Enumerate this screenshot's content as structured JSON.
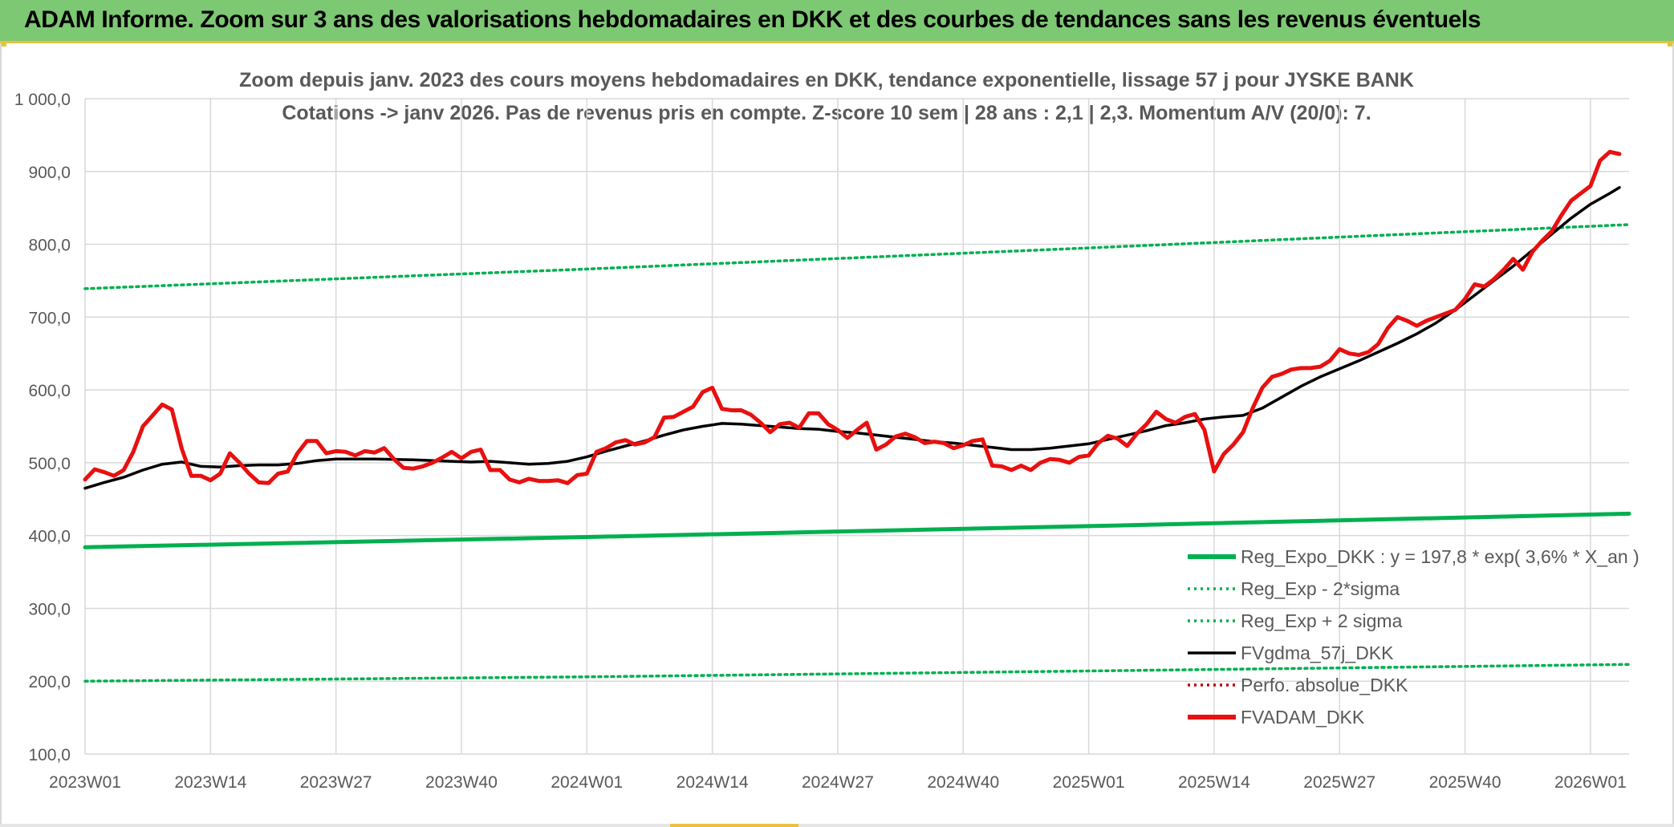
{
  "header": {
    "title": "ADAM Informe. Zoom sur 3 ans des valorisations hebdomadaires en DKK et des courbes de tendances sans les revenus éventuels"
  },
  "chart_data": {
    "type": "line",
    "title_line1": "Zoom depuis janv. 2023 des cours moyens hebdomadaires en DKK, tendance exponentielle, lissage 57 j pour JYSKE BANK",
    "title_line2": "Cotations -> janv 2026. Pas de revenus pris en compte. Z-score 10 sem | 28 ans : 2,1  | 2,3. Momentum A/V (20/0): 7.",
    "xlabel": "",
    "ylabel": "",
    "ylim": [
      100,
      1000
    ],
    "yticks": [
      "1 000,0",
      "900,0",
      "800,0",
      "700,0",
      "600,0",
      "500,0",
      "400,0",
      "300,0",
      "200,0",
      "100,0"
    ],
    "x_tick_labels": [
      "2023W01",
      "2023W14",
      "2023W27",
      "2023W40",
      "2024W01",
      "2024W14",
      "2024W27",
      "2024W40",
      "2025W01",
      "2025W14",
      "2025W27",
      "2025W40",
      "2026W01"
    ],
    "x_tick_weeks": [
      0,
      13,
      26,
      39,
      52,
      65,
      78,
      91,
      104,
      117,
      130,
      143,
      156
    ],
    "grid": true,
    "legend_position": "bottom-right",
    "series": [
      {
        "name": "Reg_Expo_DKK : y = 197,8 * exp( 3,6% *  X_an )",
        "color": "#00b050",
        "style": "solid-thick",
        "points": [
          [
            0,
            384
          ],
          [
            52,
            398
          ],
          [
            104,
            413
          ],
          [
            160,
            430
          ]
        ]
      },
      {
        "name": "Reg_Exp - 2*sigma",
        "color": "#00b050",
        "style": "dotted",
        "points": [
          [
            0,
            200
          ],
          [
            52,
            206
          ],
          [
            104,
            214
          ],
          [
            160,
            223
          ]
        ]
      },
      {
        "name": "Reg_Exp + 2 sigma",
        "color": "#00b050",
        "style": "dotted",
        "points": [
          [
            0,
            739
          ],
          [
            52,
            766
          ],
          [
            104,
            795
          ],
          [
            160,
            827
          ]
        ]
      },
      {
        "name": "FVgdma_57j_DKK",
        "color": "#000000",
        "style": "solid",
        "points": [
          [
            0,
            465
          ],
          [
            2,
            473
          ],
          [
            4,
            480
          ],
          [
            6,
            490
          ],
          [
            8,
            498
          ],
          [
            10,
            501
          ],
          [
            12,
            495
          ],
          [
            14,
            494
          ],
          [
            16,
            496
          ],
          [
            18,
            497
          ],
          [
            20,
            497
          ],
          [
            22,
            499
          ],
          [
            24,
            503
          ],
          [
            26,
            505
          ],
          [
            30,
            505
          ],
          [
            34,
            504
          ],
          [
            38,
            502
          ],
          [
            40,
            501
          ],
          [
            42,
            502
          ],
          [
            44,
            500
          ],
          [
            46,
            498
          ],
          [
            48,
            499
          ],
          [
            50,
            502
          ],
          [
            52,
            508
          ],
          [
            54,
            516
          ],
          [
            56,
            523
          ],
          [
            58,
            530
          ],
          [
            60,
            538
          ],
          [
            62,
            545
          ],
          [
            64,
            550
          ],
          [
            66,
            554
          ],
          [
            68,
            553
          ],
          [
            70,
            551
          ],
          [
            72,
            549
          ],
          [
            74,
            547
          ],
          [
            76,
            546
          ],
          [
            78,
            543
          ],
          [
            80,
            541
          ],
          [
            82,
            538
          ],
          [
            84,
            535
          ],
          [
            86,
            532
          ],
          [
            88,
            529
          ],
          [
            90,
            527
          ],
          [
            92,
            524
          ],
          [
            94,
            521
          ],
          [
            96,
            518
          ],
          [
            98,
            518
          ],
          [
            100,
            520
          ],
          [
            102,
            523
          ],
          [
            104,
            526
          ],
          [
            106,
            532
          ],
          [
            108,
            538
          ],
          [
            110,
            544
          ],
          [
            112,
            551
          ],
          [
            114,
            555
          ],
          [
            116,
            560
          ],
          [
            118,
            563
          ],
          [
            120,
            565
          ],
          [
            122,
            575
          ],
          [
            124,
            590
          ],
          [
            126,
            605
          ],
          [
            128,
            618
          ],
          [
            130,
            629
          ],
          [
            132,
            640
          ],
          [
            134,
            652
          ],
          [
            136,
            664
          ],
          [
            138,
            677
          ],
          [
            140,
            692
          ],
          [
            142,
            710
          ],
          [
            144,
            730
          ],
          [
            146,
            750
          ],
          [
            148,
            770
          ],
          [
            150,
            792
          ],
          [
            152,
            814
          ],
          [
            154,
            836
          ],
          [
            156,
            855
          ],
          [
            158,
            870
          ],
          [
            159,
            878
          ]
        ]
      },
      {
        "name": "Perfo. absolue_DKK",
        "color": "#c00000",
        "style": "dotted",
        "points": []
      },
      {
        "name": "FVADAM_DKK",
        "color": "#e81010",
        "style": "solid-thick",
        "points": [
          [
            0,
            477
          ],
          [
            1,
            491
          ],
          [
            2,
            487
          ],
          [
            3,
            482
          ],
          [
            4,
            490
          ],
          [
            5,
            515
          ],
          [
            6,
            550
          ],
          [
            7,
            565
          ],
          [
            8,
            580
          ],
          [
            9,
            573
          ],
          [
            10,
            520
          ],
          [
            11,
            482
          ],
          [
            12,
            482
          ],
          [
            13,
            476
          ],
          [
            14,
            485
          ],
          [
            15,
            513
          ],
          [
            16,
            500
          ],
          [
            17,
            485
          ],
          [
            18,
            473
          ],
          [
            19,
            472
          ],
          [
            20,
            485
          ],
          [
            21,
            488
          ],
          [
            22,
            513
          ],
          [
            23,
            530
          ],
          [
            24,
            530
          ],
          [
            25,
            513
          ],
          [
            26,
            516
          ],
          [
            27,
            515
          ],
          [
            28,
            510
          ],
          [
            29,
            516
          ],
          [
            30,
            514
          ],
          [
            31,
            520
          ],
          [
            32,
            505
          ],
          [
            33,
            493
          ],
          [
            34,
            492
          ],
          [
            35,
            495
          ],
          [
            36,
            500
          ],
          [
            37,
            507
          ],
          [
            38,
            515
          ],
          [
            39,
            506
          ],
          [
            40,
            515
          ],
          [
            41,
            518
          ],
          [
            42,
            490
          ],
          [
            43,
            490
          ],
          [
            44,
            477
          ],
          [
            45,
            473
          ],
          [
            46,
            478
          ],
          [
            47,
            475
          ],
          [
            48,
            475
          ],
          [
            49,
            476
          ],
          [
            50,
            472
          ],
          [
            51,
            483
          ],
          [
            52,
            485
          ],
          [
            53,
            515
          ],
          [
            54,
            520
          ],
          [
            55,
            528
          ],
          [
            56,
            531
          ],
          [
            57,
            525
          ],
          [
            58,
            528
          ],
          [
            59,
            535
          ],
          [
            60,
            562
          ],
          [
            61,
            563
          ],
          [
            62,
            570
          ],
          [
            63,
            577
          ],
          [
            64,
            597
          ],
          [
            65,
            603
          ],
          [
            66,
            574
          ],
          [
            67,
            572
          ],
          [
            68,
            572
          ],
          [
            69,
            566
          ],
          [
            70,
            555
          ],
          [
            71,
            542
          ],
          [
            72,
            553
          ],
          [
            73,
            555
          ],
          [
            74,
            548
          ],
          [
            75,
            568
          ],
          [
            76,
            568
          ],
          [
            77,
            553
          ],
          [
            78,
            545
          ],
          [
            79,
            534
          ],
          [
            80,
            545
          ],
          [
            81,
            555
          ],
          [
            82,
            518
          ],
          [
            83,
            525
          ],
          [
            84,
            536
          ],
          [
            85,
            540
          ],
          [
            86,
            535
          ],
          [
            87,
            527
          ],
          [
            88,
            529
          ],
          [
            89,
            527
          ],
          [
            90,
            520
          ],
          [
            91,
            524
          ],
          [
            92,
            530
          ],
          [
            93,
            532
          ],
          [
            94,
            496
          ],
          [
            95,
            495
          ],
          [
            96,
            490
          ],
          [
            97,
            496
          ],
          [
            98,
            490
          ],
          [
            99,
            500
          ],
          [
            100,
            505
          ],
          [
            101,
            504
          ],
          [
            102,
            500
          ],
          [
            103,
            508
          ],
          [
            104,
            510
          ],
          [
            105,
            527
          ],
          [
            106,
            537
          ],
          [
            107,
            533
          ],
          [
            108,
            523
          ],
          [
            109,
            540
          ],
          [
            110,
            553
          ],
          [
            111,
            570
          ],
          [
            112,
            560
          ],
          [
            113,
            555
          ],
          [
            114,
            563
          ],
          [
            115,
            567
          ],
          [
            116,
            545
          ],
          [
            117,
            488
          ],
          [
            118,
            512
          ],
          [
            119,
            525
          ],
          [
            120,
            542
          ],
          [
            121,
            575
          ],
          [
            122,
            603
          ],
          [
            123,
            618
          ],
          [
            124,
            622
          ],
          [
            125,
            628
          ],
          [
            126,
            630
          ],
          [
            127,
            630
          ],
          [
            128,
            632
          ],
          [
            129,
            640
          ],
          [
            130,
            656
          ],
          [
            131,
            650
          ],
          [
            132,
            648
          ],
          [
            133,
            652
          ],
          [
            134,
            663
          ],
          [
            135,
            685
          ],
          [
            136,
            700
          ],
          [
            137,
            695
          ],
          [
            138,
            688
          ],
          [
            139,
            695
          ],
          [
            140,
            700
          ],
          [
            141,
            705
          ],
          [
            142,
            710
          ],
          [
            143,
            725
          ],
          [
            144,
            745
          ],
          [
            145,
            742
          ],
          [
            146,
            752
          ],
          [
            147,
            765
          ],
          [
            148,
            780
          ],
          [
            149,
            765
          ],
          [
            150,
            790
          ],
          [
            151,
            805
          ],
          [
            152,
            818
          ],
          [
            153,
            840
          ],
          [
            154,
            860
          ],
          [
            155,
            870
          ],
          [
            156,
            880
          ],
          [
            157,
            915
          ],
          [
            158,
            927
          ],
          [
            159,
            924
          ]
        ]
      }
    ]
  }
}
